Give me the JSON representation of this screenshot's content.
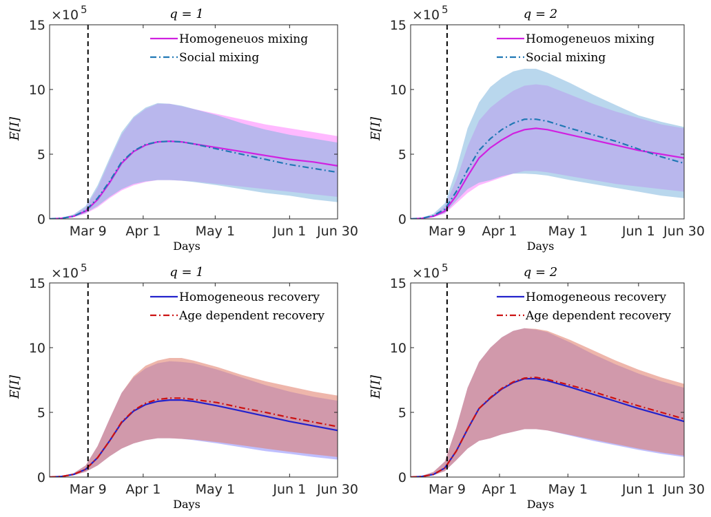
{
  "chart_data": [
    {
      "type": "area",
      "title": "q = 1",
      "xlabel": "Days",
      "ylabel": "E[I]",
      "y_multiplier": "×10",
      "y_exponent": "5",
      "ylim": [
        0,
        15
      ],
      "xlim": [
        0,
        120
      ],
      "x_ticks": [
        {
          "x": 16,
          "label": "Mar 9"
        },
        {
          "x": 39,
          "label": "Apr 1"
        },
        {
          "x": 69,
          "label": "May 1"
        },
        {
          "x": 100,
          "label": "Jun 1"
        },
        {
          "x": 120,
          "label": "Jun 30"
        }
      ],
      "y_ticks": [
        0,
        5,
        10,
        15
      ],
      "vline_x": 16,
      "legend_position": "top-right",
      "series": [
        {
          "name": "Homogeneuos mixing",
          "color": "#d020e0",
          "dash": "solid",
          "band_color": "#ff80ff",
          "x": [
            0,
            5,
            10,
            15,
            20,
            25,
            30,
            35,
            40,
            45,
            50,
            55,
            60,
            70,
            80,
            90,
            100,
            110,
            120
          ],
          "mean": [
            0,
            0.05,
            0.2,
            0.6,
            1.5,
            2.8,
            4.3,
            5.2,
            5.7,
            5.95,
            6.0,
            5.95,
            5.8,
            5.5,
            5.2,
            4.9,
            4.6,
            4.4,
            4.1
          ],
          "lower": [
            0,
            0.03,
            0.15,
            0.4,
            0.9,
            1.6,
            2.2,
            2.6,
            2.85,
            3.0,
            3.0,
            2.95,
            2.9,
            2.7,
            2.5,
            2.3,
            2.1,
            1.9,
            1.7
          ],
          "upper": [
            0,
            0.08,
            0.3,
            0.9,
            2.4,
            4.5,
            6.5,
            7.8,
            8.5,
            8.9,
            8.9,
            8.7,
            8.5,
            8.1,
            7.7,
            7.3,
            7.0,
            6.7,
            6.4
          ]
        },
        {
          "name": "Social mixing",
          "color": "#1f77b4",
          "dash": "dashdot",
          "band_color": "#7fb6de",
          "x": [
            0,
            5,
            10,
            15,
            20,
            25,
            30,
            35,
            40,
            45,
            50,
            55,
            60,
            70,
            80,
            90,
            100,
            110,
            120
          ],
          "mean": [
            0,
            0.05,
            0.2,
            0.65,
            1.6,
            2.9,
            4.4,
            5.25,
            5.75,
            5.95,
            6.0,
            5.95,
            5.8,
            5.4,
            5.0,
            4.6,
            4.2,
            3.9,
            3.6
          ],
          "lower": [
            0,
            0.03,
            0.15,
            0.45,
            1.0,
            1.7,
            2.3,
            2.7,
            2.9,
            3.0,
            3.0,
            2.95,
            2.85,
            2.6,
            2.3,
            2.0,
            1.8,
            1.5,
            1.3
          ],
          "upper": [
            0,
            0.08,
            0.35,
            1.0,
            2.6,
            4.7,
            6.7,
            7.9,
            8.6,
            8.95,
            8.9,
            8.75,
            8.5,
            8.0,
            7.4,
            6.9,
            6.5,
            6.2,
            5.9
          ]
        }
      ]
    },
    {
      "type": "area",
      "title": "q = 2",
      "xlabel": "Days",
      "ylabel": "E[I]",
      "y_multiplier": "×10",
      "y_exponent": "5",
      "ylim": [
        0,
        15
      ],
      "xlim": [
        0,
        120
      ],
      "x_ticks": [
        {
          "x": 16,
          "label": "Mar 9"
        },
        {
          "x": 39,
          "label": "Apr 1"
        },
        {
          "x": 69,
          "label": "May 1"
        },
        {
          "x": 100,
          "label": "Jun 1"
        },
        {
          "x": 120,
          "label": "Jun 30"
        }
      ],
      "y_ticks": [
        0,
        5,
        10,
        15
      ],
      "vline_x": 16,
      "legend_position": "top-right",
      "series": [
        {
          "name": "Homogeneuos mixing",
          "color": "#d020e0",
          "dash": "solid",
          "band_color": "#ff80ff",
          "x": [
            0,
            5,
            10,
            15,
            20,
            25,
            30,
            35,
            40,
            45,
            50,
            55,
            60,
            70,
            80,
            90,
            100,
            110,
            120
          ],
          "mean": [
            0,
            0.05,
            0.2,
            0.6,
            1.8,
            3.3,
            4.7,
            5.5,
            6.1,
            6.6,
            6.9,
            7.0,
            6.9,
            6.5,
            6.1,
            5.7,
            5.3,
            5.0,
            4.7
          ],
          "lower": [
            0,
            0.03,
            0.15,
            0.4,
            1.2,
            2.0,
            2.6,
            2.9,
            3.2,
            3.5,
            3.7,
            3.7,
            3.6,
            3.3,
            3.0,
            2.7,
            2.5,
            2.3,
            2.1
          ],
          "upper": [
            0,
            0.08,
            0.3,
            1.0,
            3.0,
            5.6,
            7.6,
            8.6,
            9.3,
            9.9,
            10.3,
            10.4,
            10.3,
            9.6,
            8.9,
            8.3,
            7.8,
            7.3,
            7.0
          ]
        },
        {
          "name": "Social mixing",
          "color": "#1f77b4",
          "dash": "dashdot",
          "band_color": "#7fb6de",
          "x": [
            0,
            5,
            10,
            15,
            20,
            25,
            30,
            35,
            40,
            45,
            50,
            55,
            60,
            70,
            80,
            90,
            100,
            110,
            120
          ],
          "mean": [
            0,
            0.05,
            0.25,
            0.75,
            2.1,
            3.8,
            5.3,
            6.2,
            6.9,
            7.4,
            7.7,
            7.7,
            7.55,
            7.0,
            6.5,
            6.0,
            5.4,
            4.8,
            4.3
          ],
          "lower": [
            0,
            0.03,
            0.15,
            0.45,
            1.4,
            2.3,
            2.8,
            3.0,
            3.3,
            3.5,
            3.5,
            3.45,
            3.35,
            3.0,
            2.7,
            2.4,
            2.1,
            1.8,
            1.6
          ],
          "upper": [
            0,
            0.1,
            0.4,
            1.2,
            3.8,
            7.0,
            9.0,
            10.2,
            10.9,
            11.4,
            11.6,
            11.6,
            11.3,
            10.5,
            9.6,
            8.8,
            8.0,
            7.5,
            7.1
          ]
        }
      ]
    },
    {
      "type": "area",
      "title": "q = 1",
      "xlabel": "Days",
      "ylabel": "E[I]",
      "y_multiplier": "×10",
      "y_exponent": "5",
      "ylim": [
        0,
        15
      ],
      "xlim": [
        0,
        120
      ],
      "x_ticks": [
        {
          "x": 16,
          "label": "Mar 9"
        },
        {
          "x": 39,
          "label": "Apr 1"
        },
        {
          "x": 69,
          "label": "May 1"
        },
        {
          "x": 100,
          "label": "Jun 1"
        },
        {
          "x": 120,
          "label": "Jun 30"
        }
      ],
      "y_ticks": [
        0,
        5,
        10,
        15
      ],
      "vline_x": 16,
      "legend_position": "top-right",
      "series": [
        {
          "name": "Homogeneous recovery",
          "color": "#2222cc",
          "dash": "solid",
          "band_color": "#8a8aff",
          "x": [
            0,
            5,
            10,
            15,
            20,
            25,
            30,
            35,
            40,
            45,
            50,
            55,
            60,
            70,
            80,
            90,
            100,
            110,
            120
          ],
          "mean": [
            0,
            0.05,
            0.2,
            0.6,
            1.5,
            2.8,
            4.2,
            5.1,
            5.6,
            5.85,
            5.95,
            5.95,
            5.85,
            5.5,
            5.1,
            4.7,
            4.3,
            3.95,
            3.6
          ],
          "lower": [
            0,
            0.03,
            0.15,
            0.4,
            0.9,
            1.6,
            2.2,
            2.6,
            2.85,
            3.0,
            3.0,
            2.95,
            2.85,
            2.6,
            2.3,
            2.0,
            1.8,
            1.55,
            1.35
          ],
          "upper": [
            0,
            0.08,
            0.3,
            0.9,
            2.4,
            4.5,
            6.5,
            7.7,
            8.4,
            8.8,
            8.95,
            8.9,
            8.8,
            8.3,
            7.7,
            7.1,
            6.6,
            6.2,
            5.9
          ]
        },
        {
          "name": "Age dependent recovery",
          "color": "#cc1111",
          "dash": "dashdot",
          "band_color": "#e07a66",
          "x": [
            0,
            5,
            10,
            15,
            20,
            25,
            30,
            35,
            40,
            45,
            50,
            55,
            60,
            70,
            80,
            90,
            100,
            110,
            120
          ],
          "mean": [
            0,
            0.05,
            0.2,
            0.6,
            1.5,
            2.8,
            4.25,
            5.15,
            5.7,
            6.0,
            6.1,
            6.1,
            6.0,
            5.75,
            5.35,
            5.0,
            4.6,
            4.25,
            3.9
          ],
          "lower": [
            0,
            0.03,
            0.15,
            0.4,
            0.9,
            1.6,
            2.2,
            2.6,
            2.85,
            3.0,
            3.0,
            2.95,
            2.9,
            2.7,
            2.45,
            2.2,
            1.95,
            1.75,
            1.55
          ],
          "upper": [
            0,
            0.08,
            0.3,
            0.9,
            2.4,
            4.5,
            6.5,
            7.8,
            8.6,
            9.0,
            9.2,
            9.2,
            9.0,
            8.5,
            7.9,
            7.4,
            7.0,
            6.6,
            6.3
          ]
        }
      ]
    },
    {
      "type": "area",
      "title": "q = 2",
      "xlabel": "Days",
      "ylabel": "E[I]",
      "y_multiplier": "×10",
      "y_exponent": "5",
      "ylim": [
        0,
        15
      ],
      "xlim": [
        0,
        120
      ],
      "x_ticks": [
        {
          "x": 16,
          "label": "Mar 9"
        },
        {
          "x": 39,
          "label": "Apr 1"
        },
        {
          "x": 69,
          "label": "May 1"
        },
        {
          "x": 100,
          "label": "Jun 1"
        },
        {
          "x": 120,
          "label": "Jun 30"
        }
      ],
      "y_ticks": [
        0,
        5,
        10,
        15
      ],
      "vline_x": 16,
      "legend_position": "top-right",
      "series": [
        {
          "name": "Homogeneous recovery",
          "color": "#2222cc",
          "dash": "solid",
          "band_color": "#8a8aff",
          "x": [
            0,
            5,
            10,
            15,
            20,
            25,
            30,
            35,
            40,
            45,
            50,
            55,
            60,
            70,
            80,
            90,
            100,
            110,
            120
          ],
          "mean": [
            0,
            0.05,
            0.2,
            0.7,
            2.0,
            3.7,
            5.3,
            6.1,
            6.8,
            7.3,
            7.6,
            7.6,
            7.45,
            6.95,
            6.4,
            5.85,
            5.3,
            4.8,
            4.3
          ],
          "lower": [
            0,
            0.03,
            0.15,
            0.45,
            1.3,
            2.2,
            2.8,
            3.0,
            3.3,
            3.5,
            3.7,
            3.7,
            3.6,
            3.2,
            2.8,
            2.45,
            2.1,
            1.8,
            1.55
          ],
          "upper": [
            0,
            0.1,
            0.4,
            1.2,
            3.8,
            6.9,
            8.9,
            10.0,
            10.8,
            11.3,
            11.5,
            11.4,
            11.2,
            10.4,
            9.5,
            8.7,
            8.0,
            7.4,
            6.9
          ]
        },
        {
          "name": "Age dependent recovery",
          "color": "#cc1111",
          "dash": "dashdot",
          "band_color": "#e07a66",
          "x": [
            0,
            5,
            10,
            15,
            20,
            25,
            30,
            35,
            40,
            45,
            50,
            55,
            60,
            70,
            80,
            90,
            100,
            110,
            120
          ],
          "mean": [
            0,
            0.05,
            0.2,
            0.7,
            2.0,
            3.7,
            5.3,
            6.15,
            6.85,
            7.35,
            7.65,
            7.7,
            7.55,
            7.1,
            6.6,
            6.05,
            5.5,
            5.0,
            4.5
          ],
          "lower": [
            0,
            0.03,
            0.15,
            0.45,
            1.3,
            2.2,
            2.8,
            3.0,
            3.3,
            3.5,
            3.7,
            3.7,
            3.6,
            3.25,
            2.9,
            2.55,
            2.2,
            1.9,
            1.65
          ],
          "upper": [
            0,
            0.1,
            0.4,
            1.2,
            3.8,
            6.9,
            8.9,
            10.0,
            10.8,
            11.3,
            11.5,
            11.45,
            11.3,
            10.6,
            9.8,
            9.0,
            8.3,
            7.7,
            7.2
          ]
        }
      ]
    }
  ]
}
